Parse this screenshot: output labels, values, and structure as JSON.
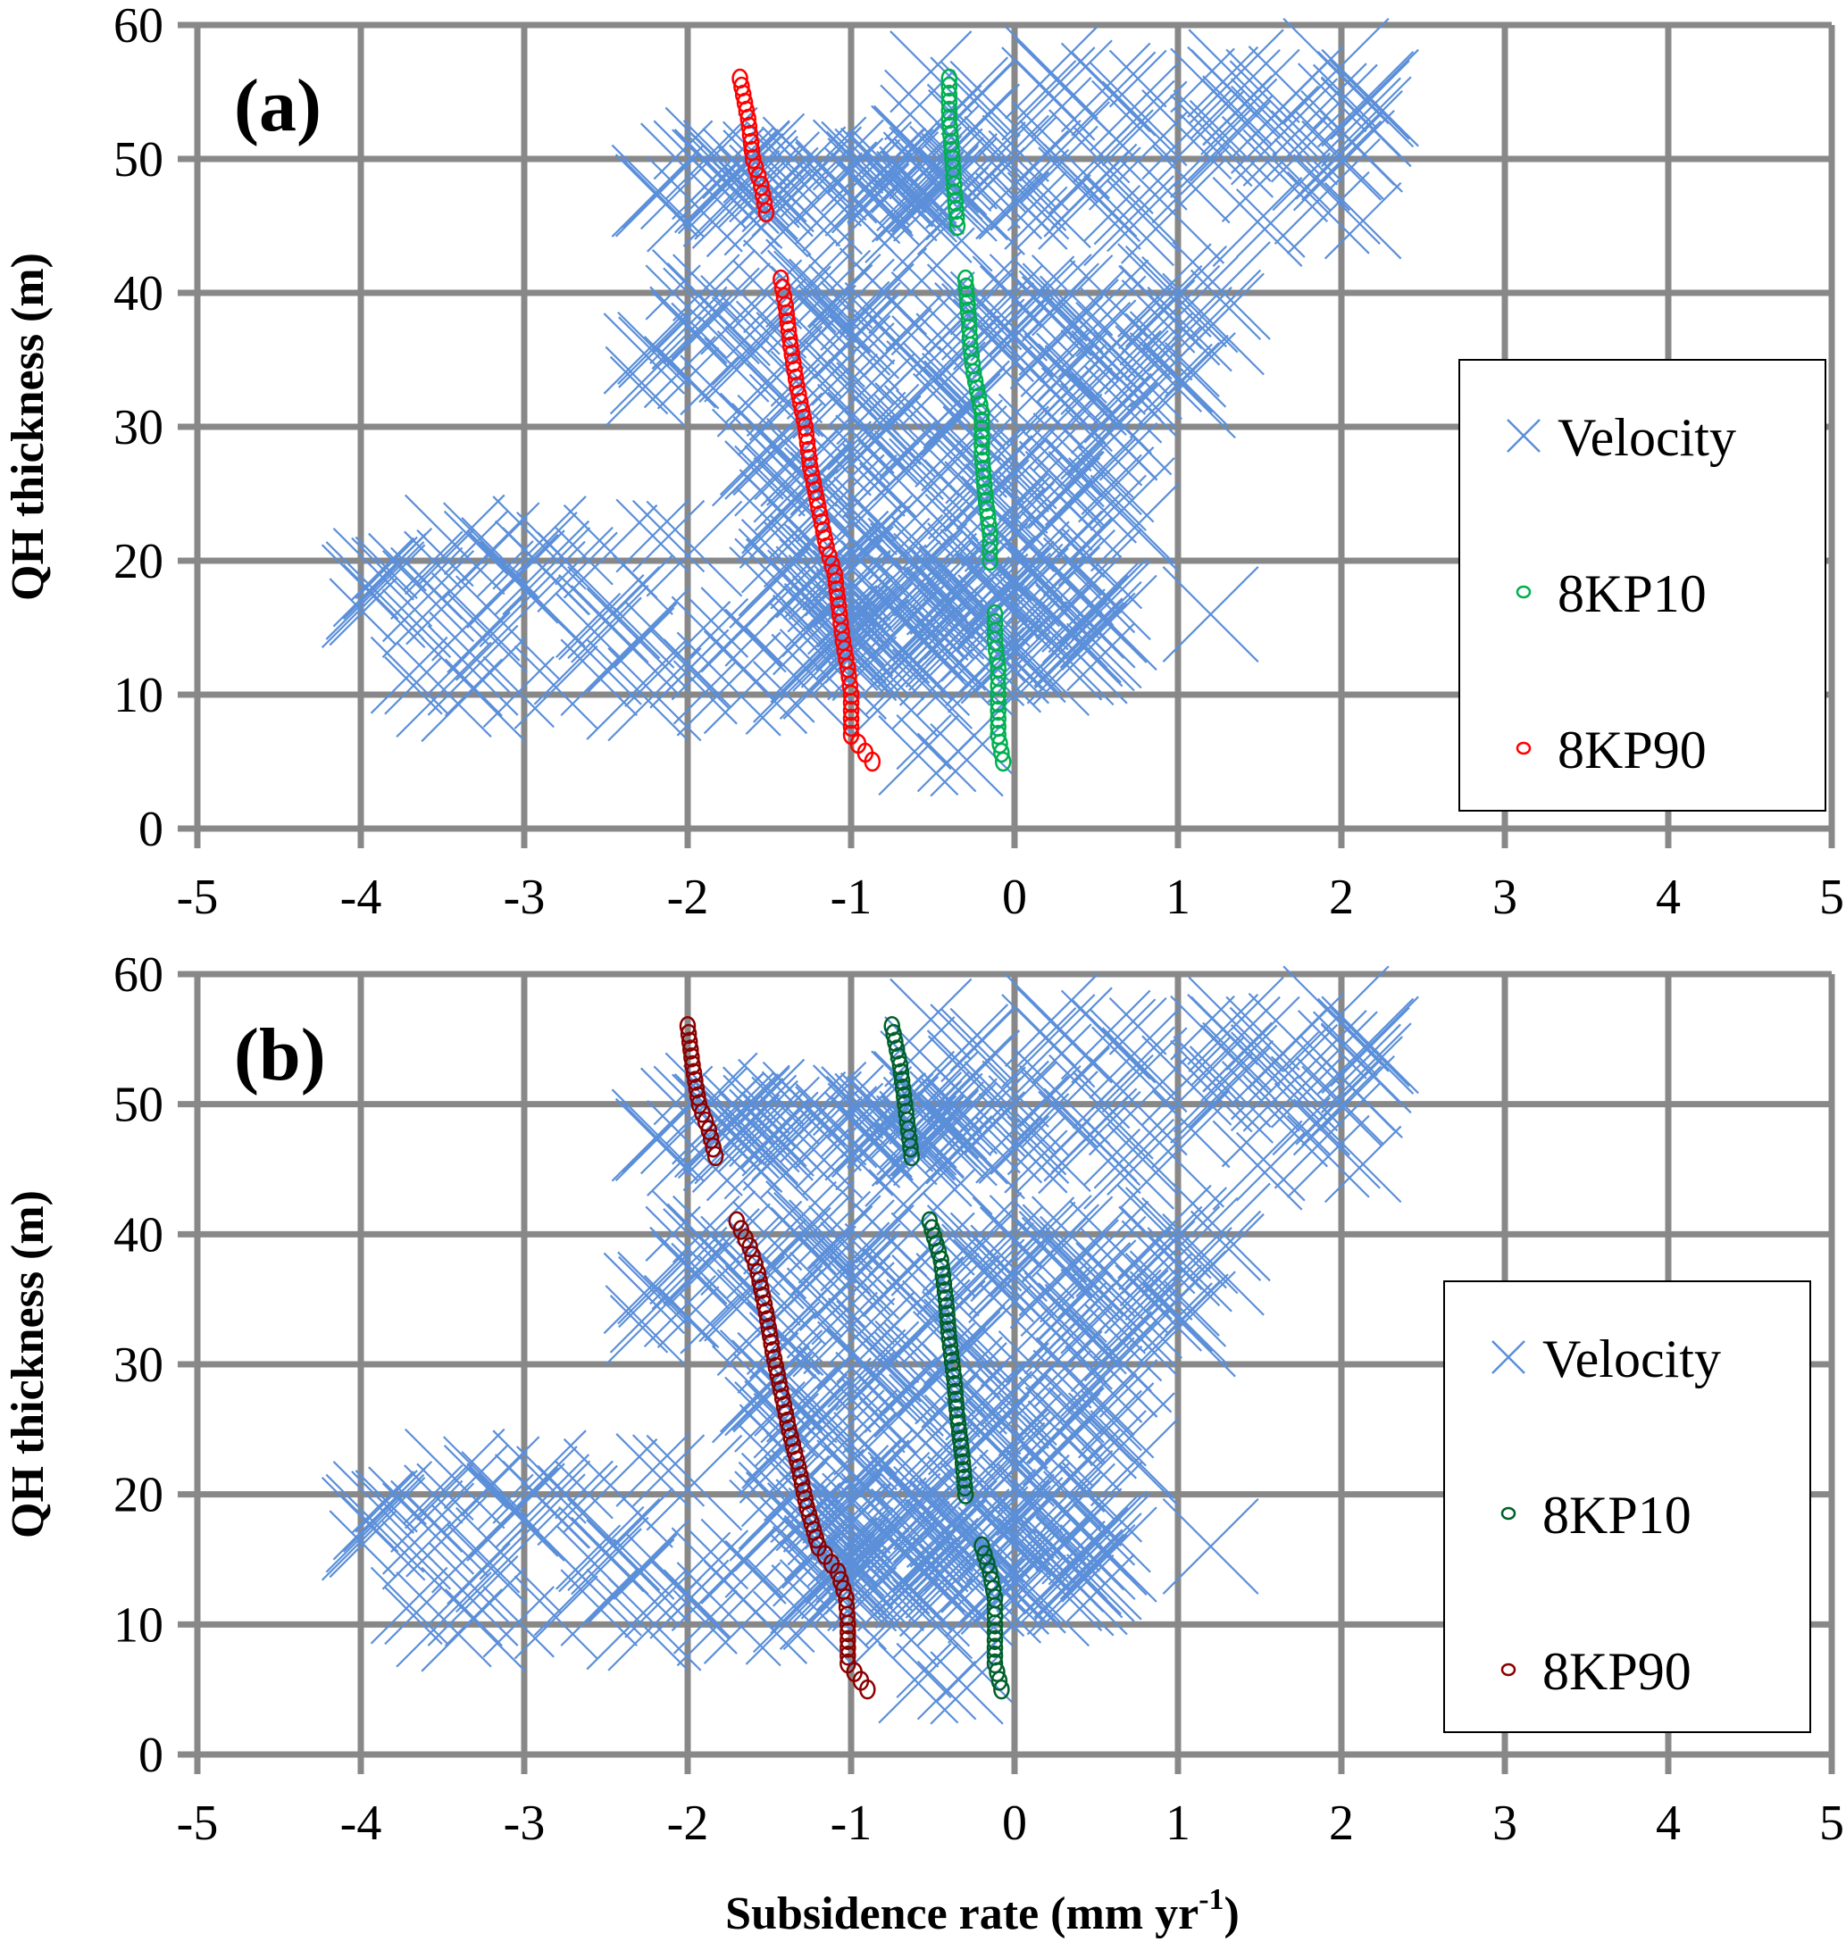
{
  "chart_data": [
    {
      "type": "scatter",
      "panel_label": "(a)",
      "xlabel": "",
      "ylabel": "QH thickness (m)",
      "xlim": [
        -5,
        5
      ],
      "ylim": [
        0,
        60
      ],
      "xticks": [
        "-5",
        "-4",
        "-3",
        "-2",
        "-1",
        "0",
        "1",
        "2",
        "3",
        "4",
        "5"
      ],
      "yticks": [
        "0",
        "10",
        "20",
        "30",
        "40",
        "50",
        "60"
      ],
      "grid": true,
      "legend_position": "right",
      "series": [
        {
          "name": "Velocity",
          "marker": "x",
          "color": "#5b8fd9"
        },
        {
          "name": "8KP10",
          "marker": "o",
          "color": "#00b050",
          "points": [
            [
              -0.07,
              5
            ],
            [
              -0.1,
              7
            ],
            [
              -0.1,
              10
            ],
            [
              -0.1,
              12
            ],
            [
              -0.12,
              14
            ],
            [
              -0.12,
              16
            ],
            [
              -0.15,
              20
            ],
            [
              -0.15,
              22
            ],
            [
              -0.18,
              25
            ],
            [
              -0.2,
              28
            ],
            [
              -0.2,
              31
            ],
            [
              -0.25,
              34
            ],
            [
              -0.27,
              36
            ],
            [
              -0.28,
              38
            ],
            [
              -0.3,
              41
            ],
            [
              -0.35,
              45
            ],
            [
              -0.37,
              48
            ],
            [
              -0.38,
              50
            ],
            [
              -0.4,
              53
            ],
            [
              -0.4,
              56
            ]
          ]
        },
        {
          "name": "8KP90",
          "marker": "o",
          "color": "#ff0000",
          "points": [
            [
              -0.87,
              5
            ],
            [
              -1.0,
              7
            ],
            [
              -1.0,
              10
            ],
            [
              -1.02,
              12
            ],
            [
              -1.05,
              14
            ],
            [
              -1.07,
              16
            ],
            [
              -1.1,
              19
            ],
            [
              -1.15,
              21
            ],
            [
              -1.2,
              24
            ],
            [
              -1.25,
              27
            ],
            [
              -1.28,
              30
            ],
            [
              -1.33,
              33
            ],
            [
              -1.37,
              36
            ],
            [
              -1.4,
              39
            ],
            [
              -1.43,
              41
            ],
            [
              -1.52,
              46
            ],
            [
              -1.55,
              48
            ],
            [
              -1.6,
              50
            ],
            [
              -1.63,
              53
            ],
            [
              -1.68,
              56
            ]
          ]
        }
      ]
    },
    {
      "type": "scatter",
      "panel_label": "(b)",
      "xlabel": "Subsidence rate (mm yr",
      "xlabel_sup": "-1",
      "xlabel_end": ")",
      "ylabel": "QH thickness (m)",
      "xlim": [
        -5,
        5
      ],
      "ylim": [
        0,
        60
      ],
      "xticks": [
        "-5",
        "-4",
        "-3",
        "-2",
        "-1",
        "0",
        "1",
        "2",
        "3",
        "4",
        "5"
      ],
      "yticks": [
        "0",
        "10",
        "20",
        "30",
        "40",
        "50",
        "60"
      ],
      "grid": true,
      "legend_position": "right",
      "series": [
        {
          "name": "Velocity",
          "marker": "x",
          "color": "#5b8fd9"
        },
        {
          "name": "8KP10",
          "marker": "o",
          "color": "#00602b",
          "points": [
            [
              -0.08,
              5
            ],
            [
              -0.12,
              7
            ],
            [
              -0.12,
              10
            ],
            [
              -0.12,
              12
            ],
            [
              -0.15,
              14
            ],
            [
              -0.2,
              16
            ],
            [
              -0.3,
              20
            ],
            [
              -0.32,
              23
            ],
            [
              -0.35,
              26
            ],
            [
              -0.37,
              29
            ],
            [
              -0.4,
              32
            ],
            [
              -0.42,
              35
            ],
            [
              -0.45,
              38
            ],
            [
              -0.52,
              41
            ],
            [
              -0.63,
              46
            ],
            [
              -0.65,
              48
            ],
            [
              -0.67,
              50
            ],
            [
              -0.7,
              53
            ],
            [
              -0.75,
              56
            ]
          ]
        },
        {
          "name": "8KP90",
          "marker": "o",
          "color": "#8b0000",
          "points": [
            [
              -0.9,
              5
            ],
            [
              -1.02,
              7
            ],
            [
              -1.02,
              10
            ],
            [
              -1.03,
              12
            ],
            [
              -1.08,
              14
            ],
            [
              -1.2,
              16
            ],
            [
              -1.27,
              19
            ],
            [
              -1.32,
              22
            ],
            [
              -1.38,
              25
            ],
            [
              -1.43,
              28
            ],
            [
              -1.48,
              31
            ],
            [
              -1.52,
              34
            ],
            [
              -1.57,
              37
            ],
            [
              -1.62,
              39
            ],
            [
              -1.7,
              41
            ],
            [
              -1.83,
              46
            ],
            [
              -1.87,
              48
            ],
            [
              -1.93,
              50
            ],
            [
              -1.97,
              53
            ],
            [
              -2.0,
              56
            ]
          ]
        }
      ]
    }
  ],
  "velocity_clusters": [
    {
      "x": [
        -2.2,
        -0.2
      ],
      "y": [
        46,
        51
      ],
      "n": 70
    },
    {
      "x": [
        -0.6,
        2.2
      ],
      "y": [
        45,
        57
      ],
      "n": 90
    },
    {
      "x": [
        -2.3,
        1.3
      ],
      "y": [
        33,
        41
      ],
      "n": 110
    },
    {
      "x": [
        -1.6,
        0.8
      ],
      "y": [
        20,
        33
      ],
      "n": 110
    },
    {
      "x": [
        -4.0,
        -0.3
      ],
      "y": [
        10,
        22
      ],
      "n": 100
    },
    {
      "x": [
        -1.3,
        0.6
      ],
      "y": [
        12,
        20
      ],
      "n": 110
    },
    {
      "x": [
        -0.6,
        0.0
      ],
      "y": [
        4,
        9
      ],
      "n": 5
    },
    {
      "x": [
        1.2,
        1.2
      ],
      "y": [
        16,
        16
      ],
      "n": 1
    }
  ]
}
